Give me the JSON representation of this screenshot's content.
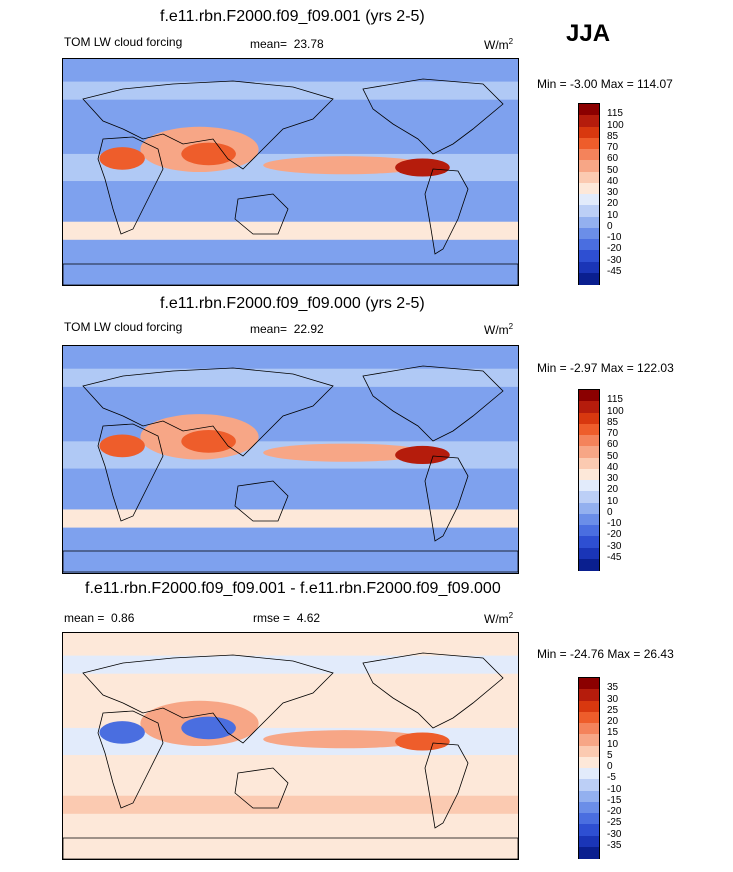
{
  "season": "JJA",
  "panels": [
    {
      "title": "f.e11.rbn.F2000.f09_f09.001 (yrs 2-5)",
      "left_label": "TOM LW cloud forcing",
      "mean_label": "mean=",
      "mean_value": "23.78",
      "units": "W/m",
      "units_sup": "2",
      "minmax": "Min =  -3.00 Max = 114.07",
      "colorbar": {
        "labels": [
          "115",
          "100",
          "85",
          "70",
          "60",
          "50",
          "40",
          "30",
          "20",
          "10",
          "0",
          "-10",
          "-20",
          "-30",
          "-45"
        ],
        "colors": [
          "#8b0000",
          "#b51c0c",
          "#d8380f",
          "#ee5d2b",
          "#f4835b",
          "#f7a686",
          "#fbcab1",
          "#fde8d9",
          "#e2ebfb",
          "#bccff6",
          "#93b0ef",
          "#6b8ee8",
          "#4a6ee0",
          "#2e4fd2",
          "#1a35b7",
          "#0a1f8f"
        ]
      },
      "map_colors": {
        "ocean": "#7ea1ee",
        "land": "#b0c9f5",
        "warm1": "#fde8d9",
        "warm2": "#f7a686",
        "warm3": "#ee5d2b",
        "hot": "#b51c0c"
      }
    },
    {
      "title": "f.e11.rbn.F2000.f09_f09.000 (yrs 2-5)",
      "left_label": "TOM LW cloud forcing",
      "mean_label": "mean=",
      "mean_value": "22.92",
      "units": "W/m",
      "units_sup": "2",
      "minmax": "Min =  -2.97 Max = 122.03",
      "colorbar": {
        "labels": [
          "115",
          "100",
          "85",
          "70",
          "60",
          "50",
          "40",
          "30",
          "20",
          "10",
          "0",
          "-10",
          "-20",
          "-30",
          "-45"
        ],
        "colors": [
          "#8b0000",
          "#b51c0c",
          "#d8380f",
          "#ee5d2b",
          "#f4835b",
          "#f7a686",
          "#fbcab1",
          "#fde8d9",
          "#e2ebfb",
          "#bccff6",
          "#93b0ef",
          "#6b8ee8",
          "#4a6ee0",
          "#2e4fd2",
          "#1a35b7",
          "#0a1f8f"
        ]
      },
      "map_colors": {
        "ocean": "#7ea1ee",
        "land": "#b0c9f5",
        "warm1": "#fde8d9",
        "warm2": "#f7a686",
        "warm3": "#ee5d2b",
        "hot": "#b51c0c"
      }
    },
    {
      "title": "f.e11.rbn.F2000.f09_f09.001 - f.e11.rbn.F2000.f09_f09.000",
      "left_label": "mean =",
      "mean_label": "rmse =",
      "left_value": "0.86",
      "mean_value": "4.62",
      "units": "W/m",
      "units_sup": "2",
      "minmax": "Min = -24.76 Max =  26.43",
      "colorbar": {
        "labels": [
          "35",
          "30",
          "25",
          "20",
          "15",
          "10",
          "5",
          "0",
          "-5",
          "-10",
          "-15",
          "-20",
          "-25",
          "-30",
          "-35"
        ],
        "colors": [
          "#8b0000",
          "#b51c0c",
          "#d8380f",
          "#ee5d2b",
          "#f4835b",
          "#f7a686",
          "#fbcab1",
          "#fde8d9",
          "#e2ebfb",
          "#bccff6",
          "#93b0ef",
          "#6b8ee8",
          "#4a6ee0",
          "#2e4fd2",
          "#1a35b7",
          "#0a1f8f"
        ]
      },
      "map_colors": {
        "ocean": "#fde8d9",
        "land": "#e2ebfb",
        "warm1": "#fbcab1",
        "warm2": "#f7a686",
        "warm3": "#4a6ee0",
        "hot": "#ee5d2b"
      }
    }
  ]
}
